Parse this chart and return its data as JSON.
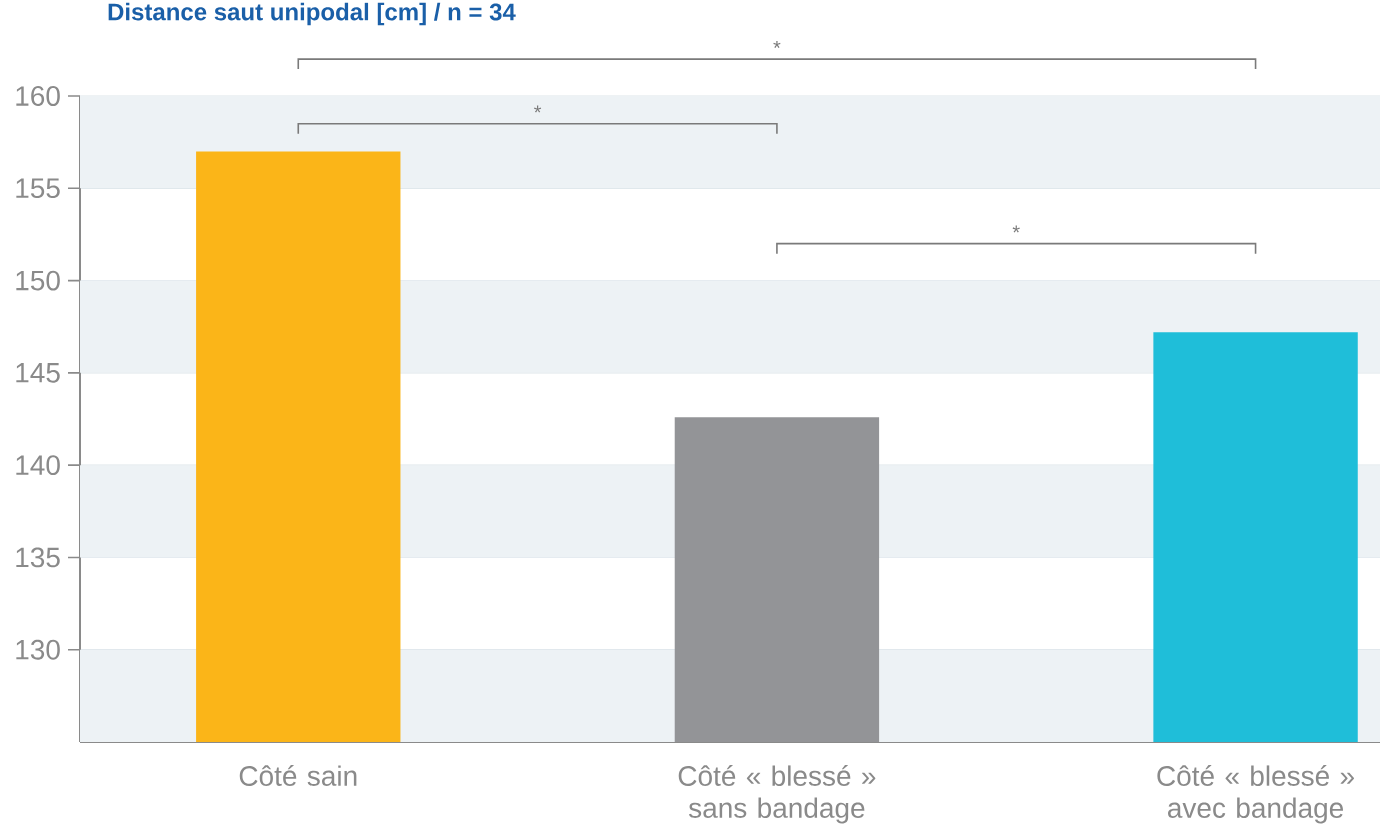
{
  "chart_data": {
    "type": "bar",
    "title": "Distance saut unipodal [cm] / n = 34",
    "categories": [
      "Côté sain",
      "Côté « blessé » sans bandage",
      "Côté « blessé » avec bandage"
    ],
    "values": [
      157,
      142.6,
      147.2
    ],
    "colors": [
      "#fbb518",
      "#939497",
      "#1fbed9"
    ],
    "ylim": [
      125,
      160
    ],
    "yticks": [
      130,
      135,
      140,
      145,
      150,
      155,
      160
    ],
    "grid": "y",
    "annotations": [
      "*",
      "*",
      "*"
    ]
  }
}
